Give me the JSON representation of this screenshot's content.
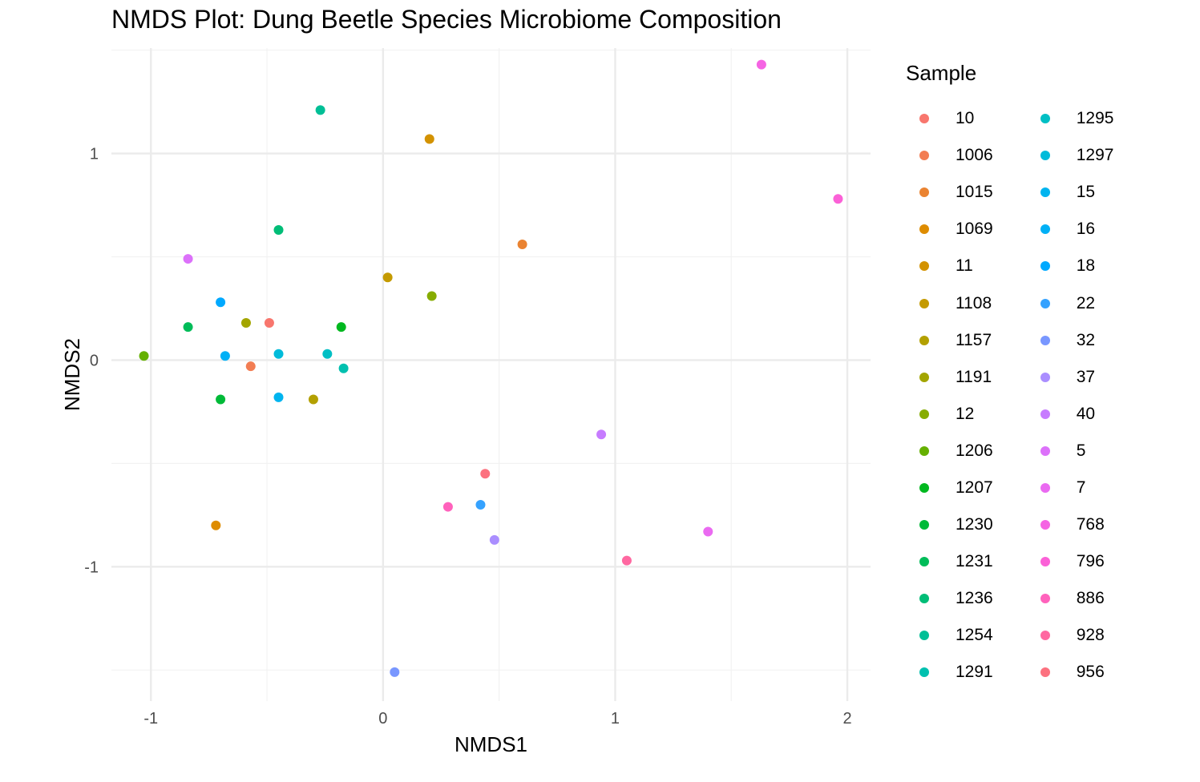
{
  "title": "NMDS Plot: Dung Beetle Species Microbiome Composition",
  "chart_data": {
    "type": "scatter",
    "title": "NMDS Plot: Dung Beetle Species Microbiome Composition",
    "xlabel": "NMDS1",
    "ylabel": "NMDS2",
    "xlim": [
      -1.17,
      2.1
    ],
    "ylim": [
      -1.65,
      1.51
    ],
    "xticks": [
      -1,
      0,
      1,
      2
    ],
    "yticks": [
      -1,
      0,
      1
    ],
    "xtick_labels": [
      "-1",
      "0",
      "1",
      "2"
    ],
    "ytick_labels": [
      "-1",
      "0",
      "1"
    ],
    "grid": true,
    "legend_title": "Sample",
    "legend_position": "right",
    "series": [
      {
        "name": "10",
        "color": "#F8766D",
        "x": -0.49,
        "y": 0.18
      },
      {
        "name": "1006",
        "color": "#F27D53",
        "x": -0.57,
        "y": -0.03
      },
      {
        "name": "1015",
        "color": "#EA8331",
        "x": 0.6,
        "y": 0.56
      },
      {
        "name": "1069",
        "color": "#DE8C00",
        "x": -0.72,
        "y": -0.8
      },
      {
        "name": "11",
        "color": "#D39200",
        "x": 0.2,
        "y": 1.07
      },
      {
        "name": "1108",
        "color": "#C49A00",
        "x": 0.02,
        "y": 0.4
      },
      {
        "name": "1157",
        "color": "#B3A000",
        "x": -0.3,
        "y": -0.19
      },
      {
        "name": "1191",
        "color": "#A3A500",
        "x": -0.59,
        "y": 0.18
      },
      {
        "name": "12",
        "color": "#86AC00",
        "x": 0.21,
        "y": 0.31
      },
      {
        "name": "1206",
        "color": "#65B000",
        "x": -1.03,
        "y": 0.02
      },
      {
        "name": "1207",
        "color": "#00B81F",
        "x": -0.18,
        "y": 0.16
      },
      {
        "name": "1230",
        "color": "#00BA38",
        "x": -0.7,
        "y": -0.19
      },
      {
        "name": "1231",
        "color": "#00BC59",
        "x": -0.84,
        "y": 0.16
      },
      {
        "name": "1236",
        "color": "#00BD77",
        "x": -0.45,
        "y": 0.63
      },
      {
        "name": "1254",
        "color": "#00BF96",
        "x": -0.27,
        "y": 1.21
      },
      {
        "name": "1291",
        "color": "#00C0AF",
        "x": -0.17,
        "y": -0.04
      },
      {
        "name": "1295",
        "color": "#00BFC4",
        "x": -0.24,
        "y": 0.03
      },
      {
        "name": "1297",
        "color": "#00BBDA",
        "x": -0.45,
        "y": 0.03
      },
      {
        "name": "15",
        "color": "#00B4EF",
        "x": -0.45,
        "y": -0.18
      },
      {
        "name": "16",
        "color": "#00B0F6",
        "x": -0.68,
        "y": 0.02
      },
      {
        "name": "18",
        "color": "#00A9FF",
        "x": -0.7,
        "y": 0.28
      },
      {
        "name": "22",
        "color": "#35A2FF",
        "x": 0.42,
        "y": -0.7
      },
      {
        "name": "32",
        "color": "#7997FF",
        "x": 0.05,
        "y": -1.51
      },
      {
        "name": "37",
        "color": "#AA8EFF",
        "x": 0.48,
        "y": -0.87
      },
      {
        "name": "40",
        "color": "#C77CFF",
        "x": 0.94,
        "y": -0.36
      },
      {
        "name": "5",
        "color": "#DC71FA",
        "x": -0.84,
        "y": 0.49
      },
      {
        "name": "7",
        "color": "#EA6AF1",
        "x": 1.4,
        "y": -0.83
      },
      {
        "name": "768",
        "color": "#F564E3",
        "x": 1.63,
        "y": 1.43
      },
      {
        "name": "796",
        "color": "#FB61D7",
        "x": 1.96,
        "y": 0.78
      },
      {
        "name": "886",
        "color": "#FF62BC",
        "x": 0.28,
        "y": -0.71
      },
      {
        "name": "928",
        "color": "#FF68A1",
        "x": 1.05,
        "y": -0.97
      },
      {
        "name": "956",
        "color": "#FC717F",
        "x": 0.44,
        "y": -0.55
      }
    ]
  }
}
